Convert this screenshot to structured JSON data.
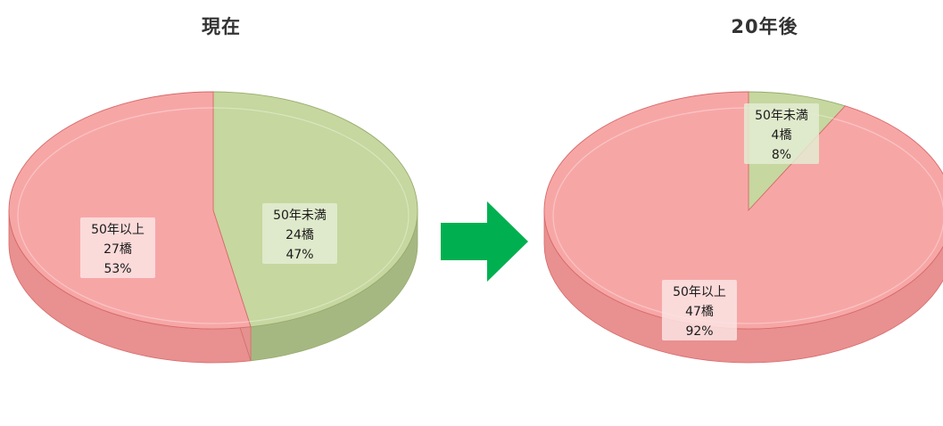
{
  "colors": {
    "over50": "#f7a6a6",
    "over50_side": "#e99090",
    "over50_edge": "#d76a6a",
    "under50": "#c6d79f",
    "under50_side": "#a6b882",
    "under50_edge": "#98ab6e",
    "arrow": "#00b050"
  },
  "arrow_icon": "right-arrow-icon",
  "chart_data": [
    {
      "type": "pie",
      "title": "現在",
      "slices": [
        {
          "label": "50年未満",
          "count_label": "24橋",
          "pct_label": "47%",
          "value": 24,
          "percent": 47,
          "color": "#c6d79f"
        },
        {
          "label": "50年以上",
          "count_label": "27橋",
          "pct_label": "53%",
          "value": 27,
          "percent": 53,
          "color": "#f7a6a6"
        }
      ]
    },
    {
      "type": "pie",
      "title": "20年後",
      "slices": [
        {
          "label": "50年未満",
          "count_label": "4橋",
          "pct_label": "8%",
          "value": 4,
          "percent": 8,
          "color": "#c6d79f"
        },
        {
          "label": "50年以上",
          "count_label": "47橋",
          "pct_label": "92%",
          "value": 47,
          "percent": 92,
          "color": "#f7a6a6"
        }
      ]
    }
  ]
}
